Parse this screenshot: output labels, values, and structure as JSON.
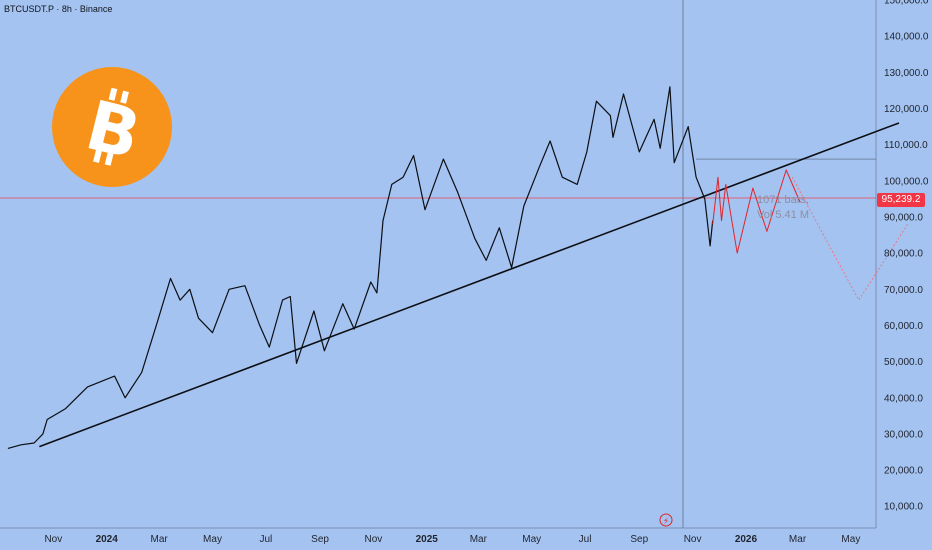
{
  "header": {
    "symbol_line": "BTCUSDT.P · 8h · Binance"
  },
  "current_price": {
    "label": "95,239.2",
    "value": 95239.2,
    "color": "#f23645"
  },
  "projection_info": {
    "bars": "1071 bars,",
    "vol": "Vol 5.41 M"
  },
  "logo": {
    "glyph": "B",
    "color": "#f7931a",
    "icon": "bitcoin-logo"
  },
  "chart_data": {
    "type": "line",
    "title": "",
    "xlabel": "",
    "ylabel": "",
    "ylim": [
      0,
      150000
    ],
    "y_axis_position": "right",
    "grid": false,
    "y_ticks": [
      "10,000.0",
      "20,000.0",
      "30,000.0",
      "40,000.0",
      "50,000.0",
      "60,000.0",
      "70,000.0",
      "80,000.0",
      "90,000.0",
      "100,000.0",
      "110,000.0",
      "120,000.0",
      "130,000.0",
      "140,000.0",
      "150,000.0"
    ],
    "x_ticks": [
      {
        "label": "Nov",
        "date": "2023-11-01",
        "major": false
      },
      {
        "label": "2024",
        "date": "2024-01-01",
        "major": true
      },
      {
        "label": "Mar",
        "date": "2024-03-01",
        "major": false
      },
      {
        "label": "May",
        "date": "2024-05-01",
        "major": false
      },
      {
        "label": "Jul",
        "date": "2024-07-01",
        "major": false
      },
      {
        "label": "Sep",
        "date": "2024-09-01",
        "major": false
      },
      {
        "label": "Nov",
        "date": "2024-11-01",
        "major": false
      },
      {
        "label": "2025",
        "date": "2025-01-01",
        "major": true
      },
      {
        "label": "Mar",
        "date": "2025-03-01",
        "major": false
      },
      {
        "label": "May",
        "date": "2025-05-01",
        "major": false
      },
      {
        "label": "Jul",
        "date": "2025-07-01",
        "major": false
      },
      {
        "label": "Sep",
        "date": "2025-09-01",
        "major": false
      },
      {
        "label": "Nov",
        "date": "2025-11-01",
        "major": false
      },
      {
        "label": "2026",
        "date": "2026-01-01",
        "major": true
      },
      {
        "label": "Mar",
        "date": "2026-03-01",
        "major": false
      },
      {
        "label": "May",
        "date": "2026-05-01",
        "major": false
      }
    ],
    "series": [
      {
        "key": "price",
        "color": "#0c0e14",
        "points": [
          [
            "2023-09-10",
            26000
          ],
          [
            "2023-09-25",
            27000
          ],
          [
            "2023-10-10",
            27500
          ],
          [
            "2023-10-20",
            30000
          ],
          [
            "2023-10-25",
            34000
          ],
          [
            "2023-11-15",
            37000
          ],
          [
            "2023-12-10",
            43000
          ],
          [
            "2024-01-10",
            46000
          ],
          [
            "2024-01-22",
            40000
          ],
          [
            "2024-02-10",
            47000
          ],
          [
            "2024-02-28",
            61000
          ],
          [
            "2024-03-14",
            73000
          ],
          [
            "2024-03-25",
            67000
          ],
          [
            "2024-04-05",
            70000
          ],
          [
            "2024-04-15",
            62000
          ],
          [
            "2024-05-01",
            58000
          ],
          [
            "2024-05-20",
            70000
          ],
          [
            "2024-06-07",
            71000
          ],
          [
            "2024-06-24",
            60000
          ],
          [
            "2024-07-05",
            54000
          ],
          [
            "2024-07-20",
            67000
          ],
          [
            "2024-07-29",
            68000
          ],
          [
            "2024-08-05",
            49500
          ],
          [
            "2024-08-25",
            64000
          ],
          [
            "2024-09-06",
            53000
          ],
          [
            "2024-09-27",
            66000
          ],
          [
            "2024-10-10",
            59000
          ],
          [
            "2024-10-29",
            72000
          ],
          [
            "2024-11-05",
            69000
          ],
          [
            "2024-11-12",
            89000
          ],
          [
            "2024-11-22",
            99000
          ],
          [
            "2024-12-05",
            101000
          ],
          [
            "2024-12-17",
            107000
          ],
          [
            "2024-12-30",
            92000
          ],
          [
            "2025-01-20",
            106000
          ],
          [
            "2025-02-05",
            97000
          ],
          [
            "2025-02-25",
            84000
          ],
          [
            "2025-03-10",
            78000
          ],
          [
            "2025-03-25",
            87000
          ],
          [
            "2025-04-08",
            76000
          ],
          [
            "2025-04-22",
            93000
          ],
          [
            "2025-05-10",
            104000
          ],
          [
            "2025-05-22",
            111000
          ],
          [
            "2025-06-05",
            101000
          ],
          [
            "2025-06-22",
            99000
          ],
          [
            "2025-07-03",
            108000
          ],
          [
            "2025-07-14",
            122000
          ],
          [
            "2025-07-30",
            118000
          ],
          [
            "2025-08-02",
            112000
          ],
          [
            "2025-08-14",
            124000
          ],
          [
            "2025-09-01",
            108000
          ],
          [
            "2025-09-18",
            117000
          ],
          [
            "2025-09-25",
            109000
          ],
          [
            "2025-10-06",
            126000
          ],
          [
            "2025-10-11",
            105000
          ],
          [
            "2025-10-27",
            115000
          ],
          [
            "2025-11-05",
            101000
          ],
          [
            "2025-11-15",
            95000
          ],
          [
            "2025-11-21",
            82000
          ],
          [
            "2025-11-24",
            89000
          ]
        ]
      },
      {
        "key": "projection",
        "color": "#e0242c",
        "points": [
          [
            "2025-11-24",
            88000
          ],
          [
            "2025-11-30",
            101000
          ],
          [
            "2025-12-04",
            89000
          ],
          [
            "2025-12-09",
            99000
          ],
          [
            "2025-12-22",
            80000
          ],
          [
            "2026-01-09",
            98000
          ],
          [
            "2026-01-25",
            86000
          ],
          [
            "2026-02-16",
            103000
          ],
          [
            "2026-03-04",
            94000
          ]
        ]
      },
      {
        "key": "projection-faint",
        "color": "#e57a86",
        "points": [
          [
            "2026-02-23",
            101000
          ],
          [
            "2026-05-10",
            67000
          ],
          [
            "2026-07-05",
            88000
          ]
        ]
      }
    ],
    "trendline": {
      "color": "#0c0e14",
      "points": [
        [
          "2023-10-16",
          26500
        ],
        [
          "2026-06-25",
          116000
        ]
      ]
    },
    "levels": [
      {
        "key": "current-price",
        "value": 95239.2,
        "color": "#f23645"
      },
      {
        "key": "resistance",
        "value": 106000,
        "from": "2025-11-05",
        "color": "#5d6c86"
      }
    ],
    "markers": [
      {
        "key": "cursor",
        "date": "2025-10-21",
        "color": "#6e7fa0"
      }
    ]
  }
}
